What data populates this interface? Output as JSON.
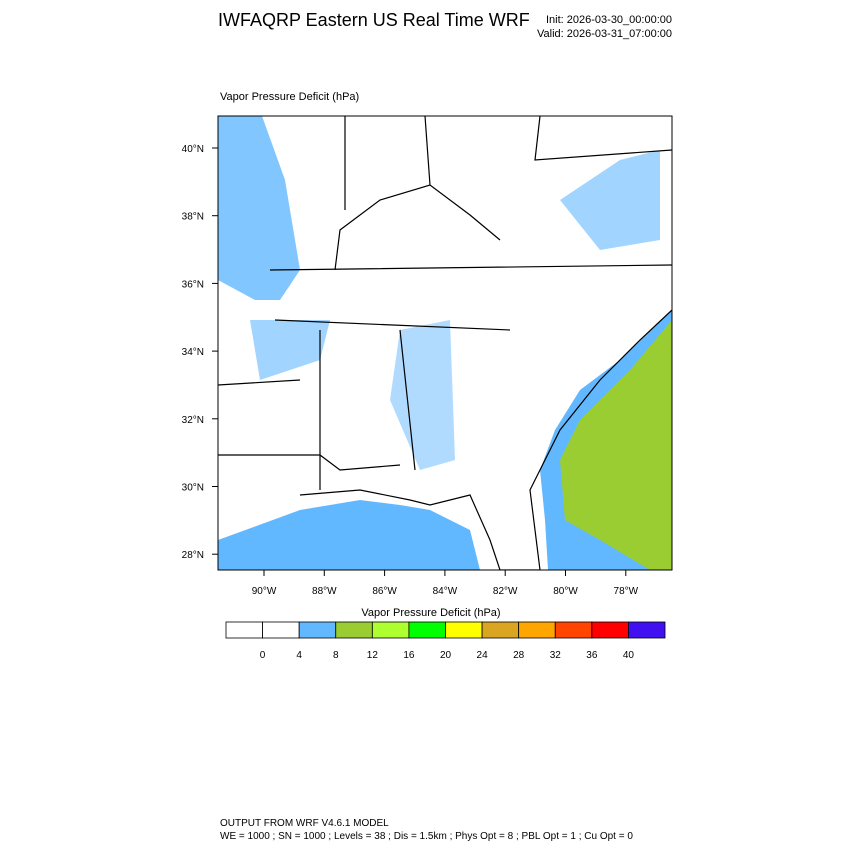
{
  "header": {
    "title": "IWFAQRP Eastern US Real Time WRF",
    "init": "Init: 2026-03-30_00:00:00",
    "valid": "Valid: 2026-03-31_07:00:00"
  },
  "map": {
    "field_label": "Vapor Pressure Deficit   (hPa)",
    "lat_labels": [
      "40°N",
      "38°N",
      "36°N",
      "34°N",
      "32°N",
      "30°N",
      "28°N"
    ],
    "lon_labels": [
      "90°W",
      "88°W",
      "86°W",
      "84°W",
      "82°W",
      "80°W",
      "78°W"
    ]
  },
  "colorbar": {
    "title": "Vapor Pressure Deficit  (hPa)",
    "labels": [
      "0",
      "4",
      "8",
      "12",
      "16",
      "20",
      "24",
      "28",
      "32",
      "36",
      "40"
    ],
    "colors": [
      "#ffffff",
      "#ffffff",
      "#62b8ff",
      "#9acd32",
      "#adff2f",
      "#00ff00",
      "#ffff00",
      "#daa520",
      "#ffa500",
      "#ff4500",
      "#ff0000",
      "#4010f0"
    ]
  },
  "footer": {
    "line1": "OUTPUT FROM WRF V4.6.1 MODEL",
    "line2": "WE = 1000 ; SN = 1000 ; Levels = 38 ; Dis = 1.5km ; Phys Opt = 8 ; PBL Opt = 1 ; Cu Opt = 0"
  }
}
